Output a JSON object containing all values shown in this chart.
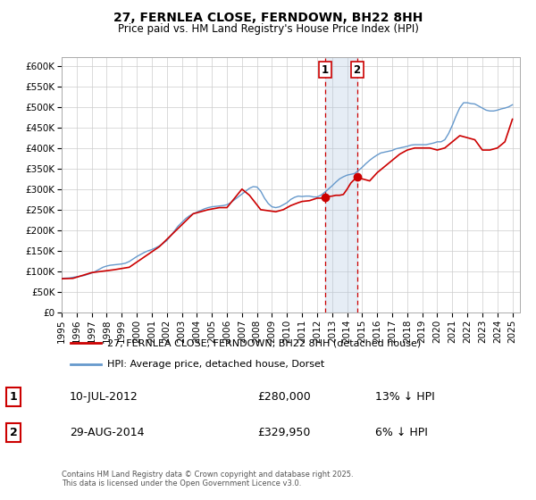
{
  "title": "27, FERNLEA CLOSE, FERNDOWN, BH22 8HH",
  "subtitle": "Price paid vs. HM Land Registry's House Price Index (HPI)",
  "ylim": [
    0,
    620000
  ],
  "xlim_start": 1995.0,
  "xlim_end": 2025.5,
  "yticks": [
    0,
    50000,
    100000,
    150000,
    200000,
    250000,
    300000,
    350000,
    400000,
    450000,
    500000,
    550000,
    600000
  ],
  "ytick_labels": [
    "£0",
    "£50K",
    "£100K",
    "£150K",
    "£200K",
    "£250K",
    "£300K",
    "£350K",
    "£400K",
    "£450K",
    "£500K",
    "£550K",
    "£600K"
  ],
  "xticks": [
    1995,
    1996,
    1997,
    1998,
    1999,
    2000,
    2001,
    2002,
    2003,
    2004,
    2005,
    2006,
    2007,
    2008,
    2009,
    2010,
    2011,
    2012,
    2013,
    2014,
    2015,
    2016,
    2017,
    2018,
    2019,
    2020,
    2021,
    2022,
    2023,
    2024,
    2025
  ],
  "line1_color": "#cc0000",
  "line2_color": "#6699cc",
  "event1_x": 2012.52,
  "event1_y": 280000,
  "event2_x": 2014.66,
  "event2_y": 329950,
  "legend1_label": "27, FERNLEA CLOSE, FERNDOWN, BH22 8HH (detached house)",
  "legend2_label": "HPI: Average price, detached house, Dorset",
  "annotation1_date": "10-JUL-2012",
  "annotation1_price": "£280,000",
  "annotation1_hpi": "13% ↓ HPI",
  "annotation2_date": "29-AUG-2014",
  "annotation2_price": "£329,950",
  "annotation2_hpi": "6% ↓ HPI",
  "footer": "Contains HM Land Registry data © Crown copyright and database right 2025.\nThis data is licensed under the Open Government Licence v3.0.",
  "background_color": "#ffffff",
  "grid_color": "#cccccc",
  "hpi_data_x": [
    1995.0,
    1995.25,
    1995.5,
    1995.75,
    1996.0,
    1996.25,
    1996.5,
    1996.75,
    1997.0,
    1997.25,
    1997.5,
    1997.75,
    1998.0,
    1998.25,
    1998.5,
    1998.75,
    1999.0,
    1999.25,
    1999.5,
    1999.75,
    2000.0,
    2000.25,
    2000.5,
    2000.75,
    2001.0,
    2001.25,
    2001.5,
    2001.75,
    2002.0,
    2002.25,
    2002.5,
    2002.75,
    2003.0,
    2003.25,
    2003.5,
    2003.75,
    2004.0,
    2004.25,
    2004.5,
    2004.75,
    2005.0,
    2005.25,
    2005.5,
    2005.75,
    2006.0,
    2006.25,
    2006.5,
    2006.75,
    2007.0,
    2007.25,
    2007.5,
    2007.75,
    2008.0,
    2008.25,
    2008.5,
    2008.75,
    2009.0,
    2009.25,
    2009.5,
    2009.75,
    2010.0,
    2010.25,
    2010.5,
    2010.75,
    2011.0,
    2011.25,
    2011.5,
    2011.75,
    2012.0,
    2012.25,
    2012.5,
    2012.75,
    2013.0,
    2013.25,
    2013.5,
    2013.75,
    2014.0,
    2014.25,
    2014.5,
    2014.75,
    2015.0,
    2015.25,
    2015.5,
    2015.75,
    2016.0,
    2016.25,
    2016.5,
    2016.75,
    2017.0,
    2017.25,
    2017.5,
    2017.75,
    2018.0,
    2018.25,
    2018.5,
    2018.75,
    2019.0,
    2019.25,
    2019.5,
    2019.75,
    2020.0,
    2020.25,
    2020.5,
    2020.75,
    2021.0,
    2021.25,
    2021.5,
    2021.75,
    2022.0,
    2022.25,
    2022.5,
    2022.75,
    2023.0,
    2023.25,
    2023.5,
    2023.75,
    2024.0,
    2024.25,
    2024.5,
    2024.75,
    2025.0
  ],
  "hpi_data_y": [
    83000,
    83500,
    84000,
    85500,
    87000,
    88500,
    90000,
    93000,
    96000,
    100000,
    105000,
    110000,
    113000,
    115000,
    116000,
    117000,
    118000,
    120000,
    124000,
    130000,
    136000,
    141000,
    146000,
    150000,
    153000,
    157000,
    162000,
    168000,
    175000,
    186000,
    198000,
    210000,
    219000,
    228000,
    235000,
    240000,
    244000,
    248000,
    252000,
    255000,
    257000,
    258000,
    259000,
    260000,
    262000,
    267000,
    274000,
    281000,
    288000,
    295000,
    302000,
    306000,
    305000,
    295000,
    278000,
    265000,
    257000,
    255000,
    257000,
    262000,
    267000,
    275000,
    280000,
    283000,
    282000,
    283000,
    283000,
    281000,
    281000,
    285000,
    292000,
    300000,
    308000,
    317000,
    325000,
    330000,
    334000,
    336000,
    338000,
    345000,
    353000,
    362000,
    370000,
    377000,
    383000,
    388000,
    390000,
    392000,
    394000,
    398000,
    400000,
    402000,
    404000,
    407000,
    408000,
    408000,
    408000,
    408000,
    410000,
    412000,
    415000,
    415000,
    420000,
    435000,
    455000,
    478000,
    498000,
    510000,
    510000,
    508000,
    507000,
    502000,
    497000,
    492000,
    490000,
    490000,
    492000,
    495000,
    497000,
    500000,
    505000
  ],
  "price_data_x": [
    1995.0,
    1995.75,
    1997.0,
    1998.5,
    1999.5,
    2001.5,
    2003.75,
    2004.75,
    2005.5,
    2006.0,
    2007.0,
    2007.5,
    2008.25,
    2009.25,
    2009.75,
    2010.25,
    2010.75,
    2011.0,
    2011.5,
    2011.75,
    2012.0,
    2012.25,
    2012.52,
    2012.75,
    2013.0,
    2013.25,
    2013.5,
    2013.75,
    2014.0,
    2014.25,
    2014.66,
    2015.0,
    2015.5,
    2016.0,
    2016.5,
    2017.0,
    2017.5,
    2018.0,
    2018.5,
    2019.0,
    2019.5,
    2020.0,
    2020.5,
    2021.0,
    2021.5,
    2022.0,
    2022.5,
    2023.0,
    2023.5,
    2024.0,
    2024.5,
    2025.0
  ],
  "price_data_y": [
    82000,
    83000,
    97000,
    104000,
    110000,
    160000,
    240000,
    250000,
    255000,
    255000,
    300000,
    285000,
    250000,
    245000,
    250000,
    260000,
    267000,
    270000,
    272000,
    275000,
    278000,
    278000,
    280000,
    282000,
    283000,
    285000,
    285000,
    287000,
    300000,
    315000,
    329950,
    325000,
    320000,
    340000,
    355000,
    370000,
    385000,
    395000,
    400000,
    400000,
    400000,
    395000,
    400000,
    415000,
    430000,
    425000,
    420000,
    395000,
    395000,
    400000,
    415000,
    470000
  ]
}
